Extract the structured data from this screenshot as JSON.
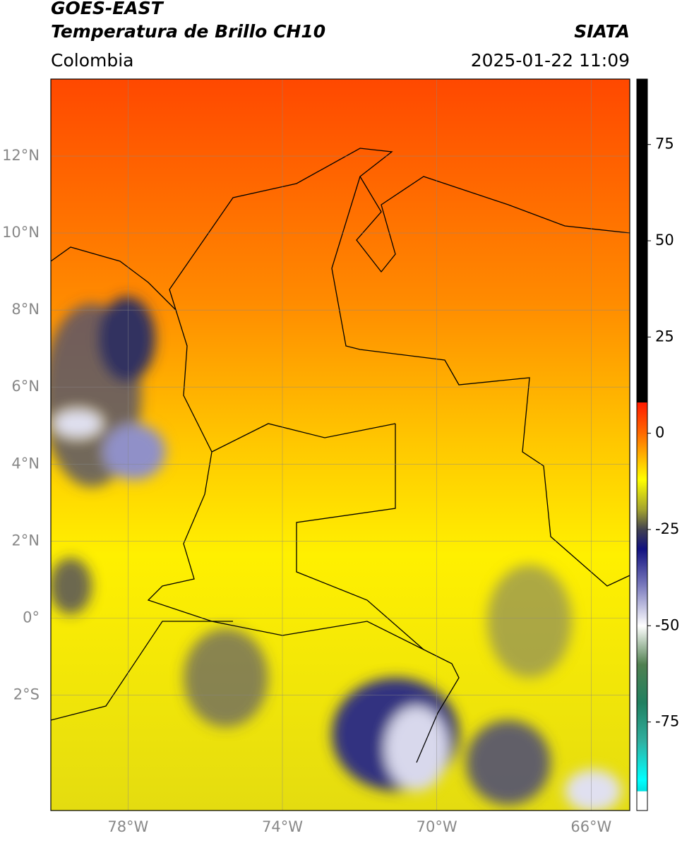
{
  "header": {
    "title": "GOES-EAST",
    "subtitle": "Temperatura de Brillo CH10",
    "source": "SIATA",
    "region": "Colombia",
    "datetime": "2025-01-22 11:09"
  },
  "map": {
    "lon_lim": [
      -80,
      -65
    ],
    "lat_lim": [
      -5,
      14
    ],
    "grid": true,
    "lat_ticks": [
      {
        "value": 12,
        "label": "12°N"
      },
      {
        "value": 10,
        "label": "10°N"
      },
      {
        "value": 8,
        "label": "8°N"
      },
      {
        "value": 6,
        "label": "6°N"
      },
      {
        "value": 4,
        "label": "4°N"
      },
      {
        "value": 2,
        "label": "2°N"
      },
      {
        "value": 0,
        "label": "0°"
      },
      {
        "value": -2,
        "label": "2°S"
      }
    ],
    "lon_ticks": [
      {
        "value": -78,
        "label": "78°W"
      },
      {
        "value": -74,
        "label": "74°W"
      },
      {
        "value": -70,
        "label": "70°W"
      },
      {
        "value": -66,
        "label": "66°W"
      }
    ]
  },
  "colorbar": {
    "lim": [
      -98,
      92
    ],
    "ticks": [
      75,
      50,
      25,
      0,
      -25,
      -50,
      -75
    ],
    "stops": [
      {
        "value": 92,
        "color": "#000000"
      },
      {
        "value": 8,
        "color": "#000000"
      },
      {
        "value": 8,
        "color": "#ff1a00"
      },
      {
        "value": 0,
        "color": "#ff6a00"
      },
      {
        "value": -12,
        "color": "#ffff00"
      },
      {
        "value": -20,
        "color": "#a0a030"
      },
      {
        "value": -25,
        "color": "#404050"
      },
      {
        "value": -30,
        "color": "#101080"
      },
      {
        "value": -40,
        "color": "#8080c0"
      },
      {
        "value": -50,
        "color": "#ffffff"
      },
      {
        "value": -60,
        "color": "#508050"
      },
      {
        "value": -70,
        "color": "#208060"
      },
      {
        "value": -80,
        "color": "#30b0a0"
      },
      {
        "value": -90,
        "color": "#00ffff"
      },
      {
        "value": -93,
        "color": "#00e0e0"
      },
      {
        "value": -93,
        "color": "#ffffff"
      },
      {
        "value": -98,
        "color": "#ffffff"
      }
    ]
  }
}
